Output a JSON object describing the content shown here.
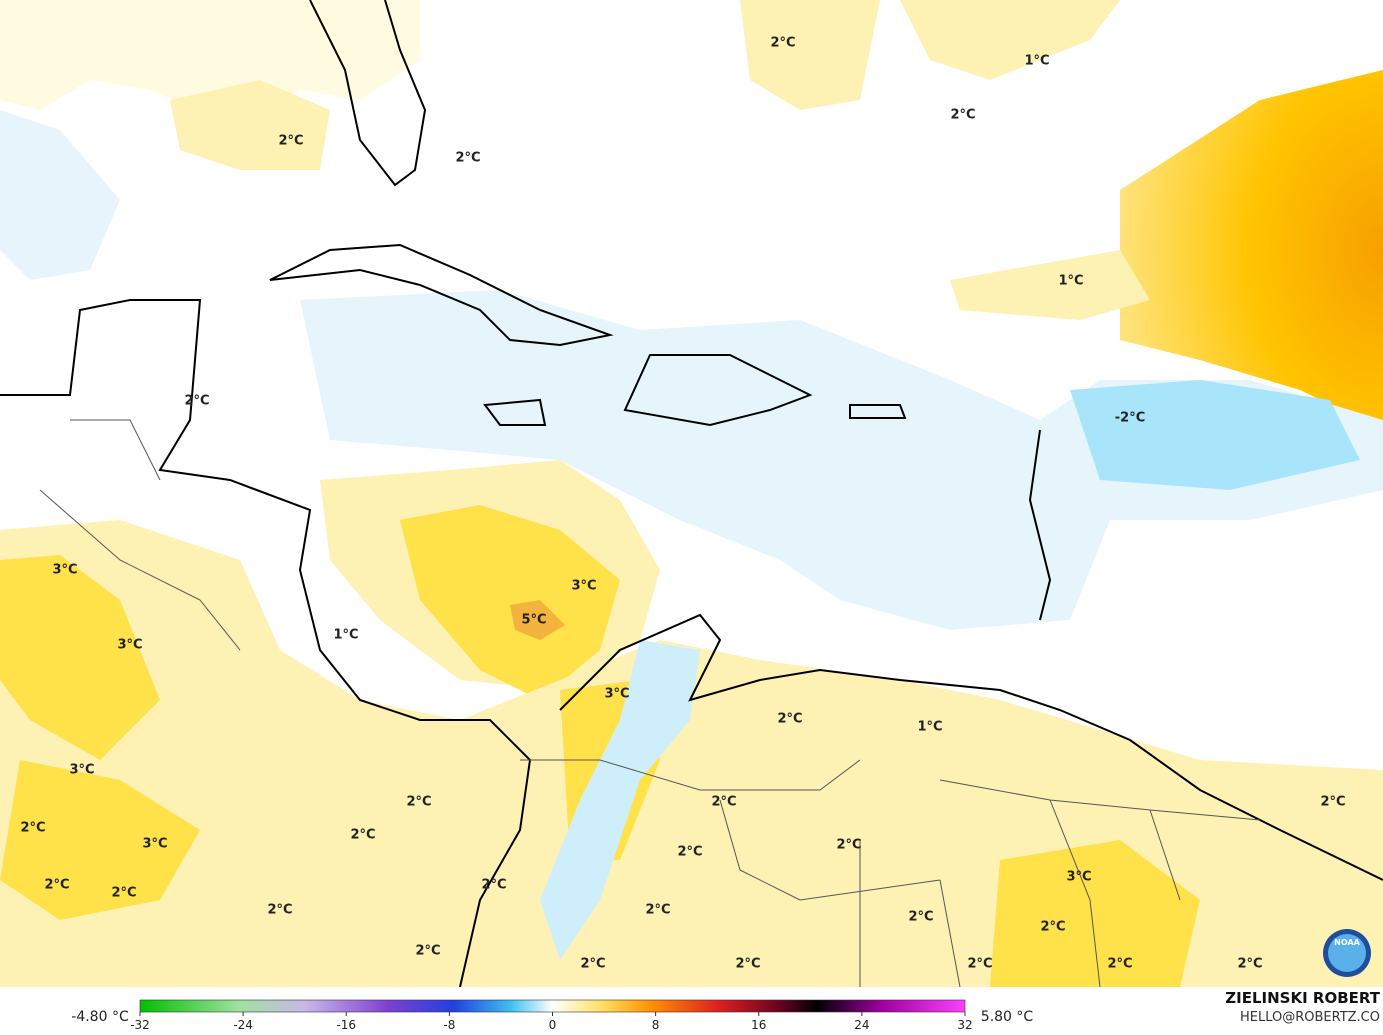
{
  "map": {
    "labels": [
      "2°C",
      "1°C",
      "2°C",
      "2°C",
      "2°C",
      "1°C",
      "2°C",
      "-2°C",
      "3°C",
      "3°C",
      "5°C",
      "1°C",
      "3°C",
      "3°C",
      "2°C",
      "1°C",
      "3°C",
      "2°C",
      "2°C",
      "2°C",
      "2°C",
      "2°C",
      "3°C",
      "2°C",
      "2°C",
      "2°C",
      "2°C",
      "3°C",
      "2°C",
      "2°C",
      "2°C",
      "2°C",
      "2°C",
      "2°C",
      "2°C",
      "2°C",
      "2°C",
      "2°C",
      "2°C"
    ]
  },
  "legend": {
    "min_label": "-4.80 °C",
    "max_label": "5.80 °C",
    "ticks": [
      -32,
      -24,
      -16,
      -8,
      0,
      8,
      16,
      24,
      32
    ]
  },
  "credit": {
    "name": "ZIELINSKI ROBERT",
    "email": "HELLO@ROBERTZ.CO"
  },
  "logo": "NOAA"
}
